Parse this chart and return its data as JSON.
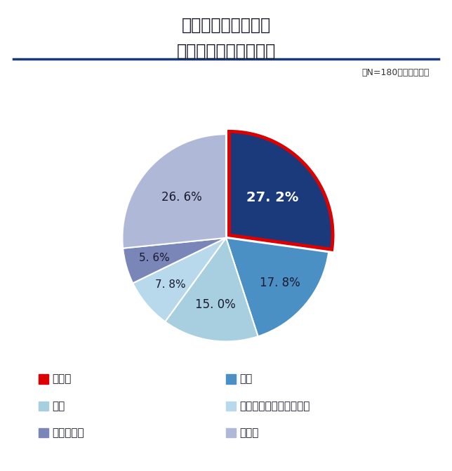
{
  "title_line1": "「趣味への投資」で",
  "title_line2": "最も投資しているもの",
  "subtitle": "（N=180　単一回答）",
  "labels": [
    "推し活",
    "旅行",
    "食事",
    "漫画・アニメ・映画鑑賞",
    "アウトドア",
    "その他"
  ],
  "values": [
    27.2,
    17.8,
    15.0,
    7.8,
    5.6,
    26.6
  ],
  "colors": [
    "#1a3a7c",
    "#4a90c4",
    "#a8cfe0",
    "#b8d8ec",
    "#7a86b8",
    "#b0b8d8"
  ],
  "explode": [
    0.04,
    0,
    0,
    0,
    0,
    0
  ],
  "pct_labels": [
    "27. 2%",
    "17. 8%",
    "15. 0%",
    "7. 8%",
    "5. 6%",
    "26. 6%"
  ],
  "pct_colors": [
    "white",
    "#1a1a2e",
    "#1a1a2e",
    "#1a1a2e",
    "#1a1a2e",
    "#1a1a2e"
  ],
  "pct_fontsizes": [
    14,
    12,
    12,
    11,
    11,
    12
  ],
  "pct_bold": [
    true,
    false,
    false,
    false,
    false,
    false
  ],
  "label_radii": [
    0.55,
    0.68,
    0.65,
    0.7,
    0.72,
    0.58
  ],
  "highlight_edge_color": "#dd0000",
  "bg_color": "#ffffff",
  "title_color": "#1a1a2e",
  "subtitle_color": "#333333",
  "line_color": "#1a3a7c",
  "legend_colors": [
    "#dd0000",
    "#4a90c4",
    "#a8cfe0",
    "#b8d8ec",
    "#7a86b8",
    "#b0b8d8"
  ],
  "legend_labels": [
    "推し活",
    "旅行",
    "食事",
    "漫画・アニメ・映画鑑賞",
    "アウトドア",
    "その他"
  ],
  "startangle": 90
}
